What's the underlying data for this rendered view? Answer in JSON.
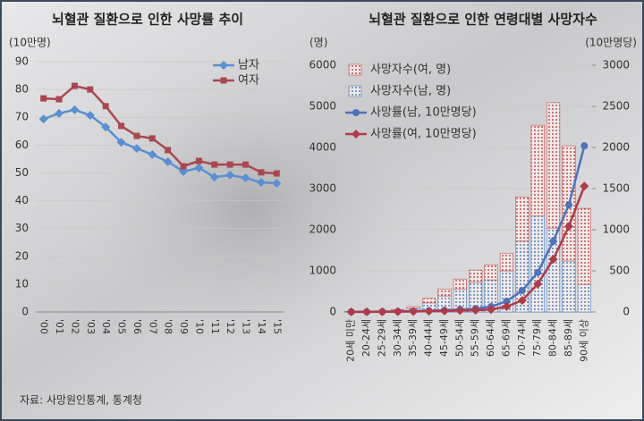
{
  "chart_data": [
    {
      "type": "line",
      "title": "뇌혈관 질환으로 인한 사망률 추이",
      "y_label": "(10만명)",
      "categories": [
        "'00",
        "'01",
        "'02",
        "'03",
        "'04",
        "'05",
        "'06",
        "'07",
        "'08",
        "'09",
        "'10",
        "'11",
        "'12",
        "'13",
        "'14",
        "'15"
      ],
      "ylim": [
        0,
        90
      ],
      "yticks": [
        0,
        10,
        20,
        30,
        40,
        50,
        60,
        70,
        80,
        90
      ],
      "legend": "upper right",
      "series": [
        {
          "name": "남자",
          "color": "#5b8fd0",
          "marker": "diamond",
          "values": [
            69.4,
            71.4,
            72.7,
            70.7,
            66.5,
            61.0,
            58.8,
            56.6,
            54.0,
            50.5,
            51.8,
            48.5,
            49.2,
            48.2,
            46.6,
            46.3
          ]
        },
        {
          "name": "여자",
          "color": "#a8474f",
          "marker": "square",
          "values": [
            76.8,
            76.5,
            81.3,
            80.0,
            74.0,
            66.9,
            63.3,
            62.4,
            58.2,
            52.4,
            54.3,
            53.0,
            53.0,
            53.0,
            50.2,
            49.8
          ]
        }
      ]
    },
    {
      "type": "bar_line",
      "title": "뇌혈관 질환으로 인한 연령대별 사망자수",
      "y_label": "(명)",
      "y2_label": "(10만명당)",
      "categories": [
        "20세 미만",
        "20-24세",
        "25-29세",
        "30-34세",
        "35-39세",
        "40-44세",
        "45-49세",
        "50-54세",
        "55-59세",
        "60-64세",
        "65-69세",
        "70-74세",
        "75-79세",
        "80-84세",
        "85-89세",
        "90세 이상"
      ],
      "ylim": [
        0,
        6000
      ],
      "yticks": [
        0,
        1000,
        2000,
        3000,
        4000,
        5000,
        6000
      ],
      "y2lim": [
        0,
        3000
      ],
      "y2ticks": [
        0,
        500,
        1000,
        1500,
        2000,
        2500,
        3000
      ],
      "stacked": true,
      "legend": "upper left",
      "series": [
        {
          "name": "사망자수(여, 명)",
          "type": "bar",
          "color": "#c0504d",
          "values": [
            4,
            8,
            10,
            20,
            40,
            110,
            170,
            240,
            300,
            370,
            430,
            1080,
            2210,
            3050,
            2800,
            1850
          ]
        },
        {
          "name": "사망자수(남, 명)",
          "type": "bar",
          "color": "#4f81bd",
          "values": [
            6,
            12,
            20,
            40,
            90,
            220,
            390,
            560,
            720,
            780,
            1000,
            1720,
            2330,
            2040,
            1240,
            670
          ]
        },
        {
          "name": "사망률(남, 10만명당)",
          "type": "line",
          "axis": "y2",
          "color": "#4f72b8",
          "marker": "circle",
          "values": [
            1,
            2,
            4,
            6,
            10,
            15,
            20,
            30,
            40,
            65,
            130,
            260,
            480,
            860,
            1300,
            2020
          ]
        },
        {
          "name": "사망률(여, 10만명당)",
          "type": "line",
          "axis": "y2",
          "color": "#b03a48",
          "marker": "diamond",
          "values": [
            1,
            1,
            2,
            4,
            6,
            9,
            12,
            18,
            22,
            30,
            65,
            140,
            340,
            640,
            1040,
            1530
          ]
        }
      ]
    }
  ],
  "source": "자료: 사망원인통계, 통계청"
}
